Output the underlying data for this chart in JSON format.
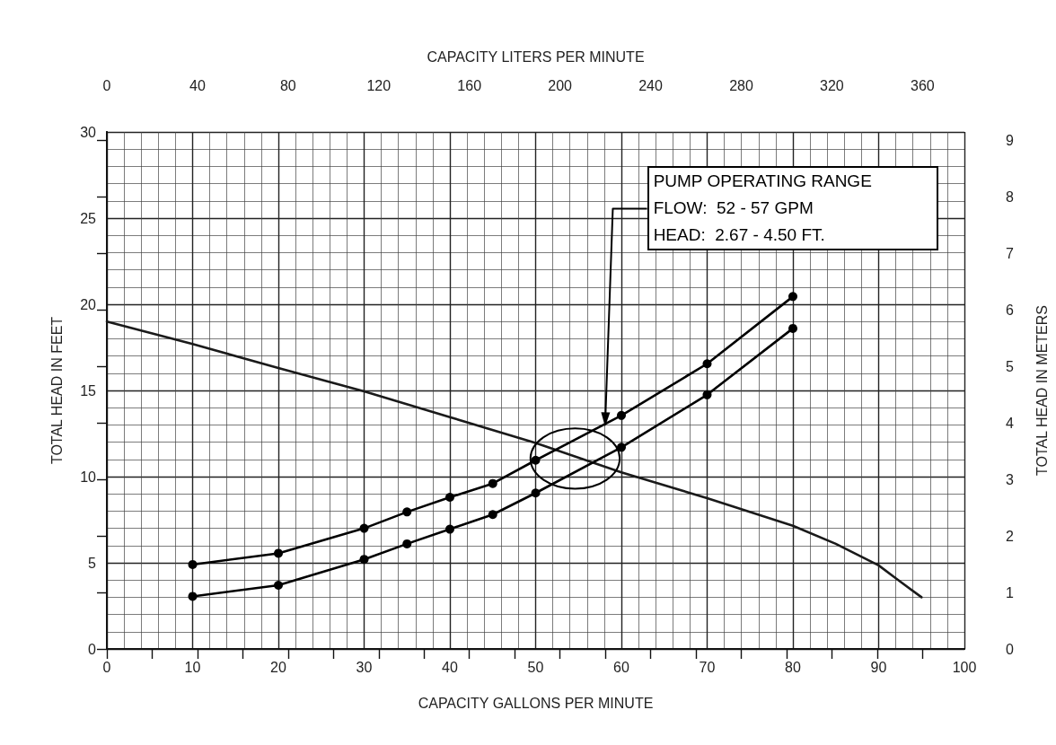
{
  "chart_data": {
    "type": "line",
    "xlabel": "CAPACITY GALLONS PER MINUTE",
    "ylabel": "TOTAL HEAD IN FEET",
    "y2label": "TOTAL HEAD IN METERS",
    "x2label": "CAPACITY LITERS PER MINUTE",
    "xlim": [
      0,
      100
    ],
    "xticks": [
      0,
      10,
      20,
      30,
      40,
      50,
      60,
      70,
      80,
      90,
      100
    ],
    "ylim": [
      0,
      30
    ],
    "yticks": [
      0,
      5,
      10,
      15,
      20,
      25,
      30
    ],
    "x2lim": [
      0,
      378.5
    ],
    "x2ticks": [
      0,
      {
        "value": 20,
        "label": null
      },
      40,
      {
        "value": 60,
        "label": null
      },
      80,
      {
        "value": 100,
        "label": null
      },
      120,
      {
        "value": 140,
        "label": null
      },
      160,
      {
        "value": 180,
        "label": null
      },
      200,
      {
        "value": 220,
        "label": null
      },
      240,
      {
        "value": 260,
        "label": null
      },
      280,
      {
        "value": 300,
        "label": null
      },
      320,
      {
        "value": 340,
        "label": null
      },
      360
    ],
    "y2lim": [
      0,
      9.144
    ],
    "y2ticks": [
      0,
      1,
      2,
      3,
      4,
      5,
      6,
      7,
      8,
      9
    ],
    "grid": true,
    "line_style": "solid",
    "series": [
      {
        "color": "#1a1a1a",
        "marker": "none",
        "x": [
          0,
          10,
          20,
          30,
          40,
          50,
          60,
          70,
          80,
          85,
          90,
          92,
          95
        ],
        "values": [
          19.0,
          17.7,
          16.3,
          14.95,
          13.45,
          11.95,
          10.25,
          8.75,
          7.15,
          6.1,
          4.85,
          4.1,
          3.0
        ]
      },
      {
        "color": "#000000",
        "marker": "circle",
        "x": [
          10,
          20,
          30,
          35,
          40,
          45,
          50,
          60,
          70,
          80
        ],
        "values": [
          4.9,
          5.55,
          7.0,
          7.95,
          8.8,
          9.6,
          10.95,
          13.55,
          16.55,
          20.45
        ]
      },
      {
        "color": "#000000",
        "marker": "circle",
        "x": [
          10,
          20,
          30,
          35,
          40,
          45,
          50,
          60,
          70,
          80
        ],
        "values": [
          3.05,
          3.7,
          5.2,
          6.1,
          6.95,
          7.8,
          9.05,
          11.7,
          14.75,
          18.6
        ]
      }
    ],
    "annotations": [
      "PUMP OPERATING RANGE",
      "FLOW:  52 - 57 GPM",
      "HEAD:  2.67 - 4.50 FT."
    ]
  }
}
